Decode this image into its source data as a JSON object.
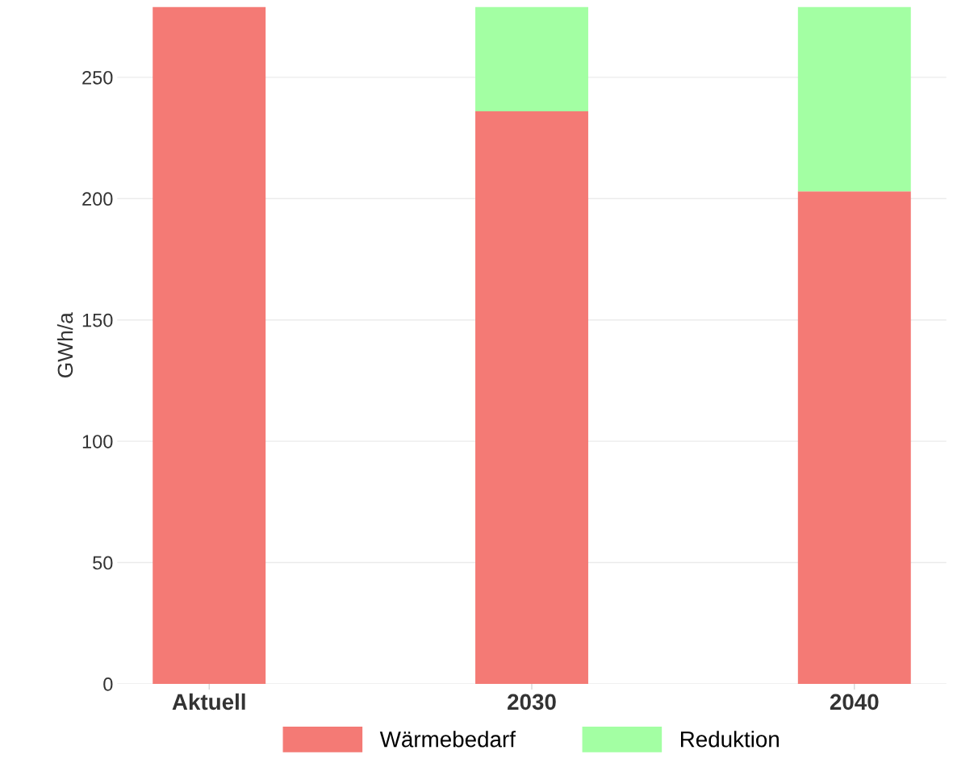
{
  "chart_data": {
    "type": "bar",
    "stacked": true,
    "ylabel": "GWh/a",
    "categories": [
      "Aktuell",
      "2030",
      "2040"
    ],
    "series": [
      {
        "name": "Wärmebedarf",
        "color": "#f47a75",
        "values": [
          279,
          236,
          203
        ]
      },
      {
        "name": "Reduktion",
        "color": "#a3ffa3",
        "values": [
          0,
          43,
          76
        ]
      }
    ],
    "ylim": [
      0,
      279
    ],
    "yticks": [
      0,
      50,
      100,
      150,
      200,
      250
    ],
    "grid": "y",
    "legend": "bottom"
  }
}
